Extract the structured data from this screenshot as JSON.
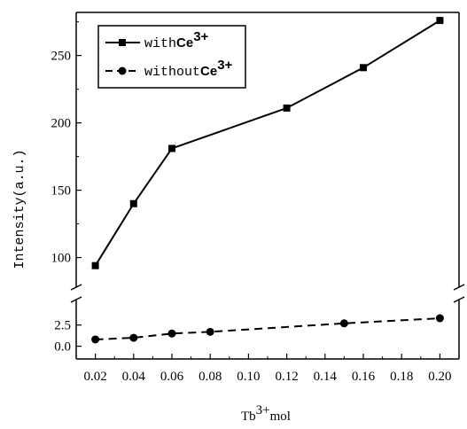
{
  "chart_data": {
    "type": "line",
    "xlabel": "Tb",
    "xlabel_sup": "3+",
    "xlabel_unit": "mol",
    "ylabel": "Intensity(a.u.)",
    "x_ticks": [
      "0.02",
      "0.04",
      "0.06",
      "0.08",
      "0.10",
      "0.12",
      "0.14",
      "0.16",
      "0.18",
      "0.20"
    ],
    "xlim": [
      0.01,
      0.21
    ],
    "y_break": true,
    "ylim_upper": [
      78,
      282
    ],
    "ylim_lower": [
      -1.5,
      5.5
    ],
    "y_ticks_upper": [
      "100",
      "150",
      "200",
      "250"
    ],
    "y_ticks_lower": [
      "0.0",
      "2.5"
    ],
    "legend_position": "top-left",
    "series": [
      {
        "name": "with",
        "name_suffix": "Ce",
        "name_sup": "3+",
        "style": "solid",
        "marker": "square",
        "color": "#000000",
        "x": [
          0.02,
          0.04,
          0.06,
          0.12,
          0.16,
          0.2
        ],
        "y": [
          94,
          140,
          181,
          211,
          241,
          276
        ]
      },
      {
        "name": "without",
        "name_suffix": "Ce",
        "name_sup": "3+",
        "style": "dashed",
        "marker": "circle",
        "color": "#000000",
        "x": [
          0.02,
          0.04,
          0.06,
          0.08,
          0.15,
          0.2
        ],
        "y": [
          0.8,
          1.0,
          1.5,
          1.7,
          2.7,
          3.3
        ]
      }
    ]
  }
}
